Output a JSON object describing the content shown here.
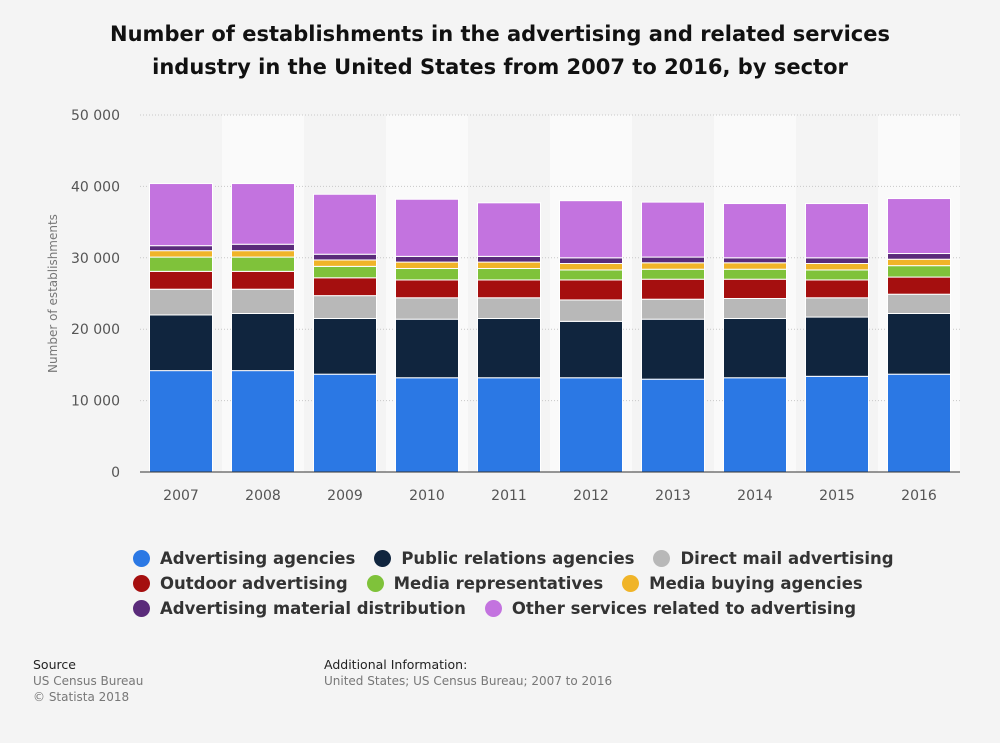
{
  "title": "Number of establishments in the advertising and related services industry in the United States from 2007 to 2016, by sector",
  "legend_items": [
    {
      "label": "Advertising agencies",
      "color": "#2b78e4"
    },
    {
      "label": "Public relations agencies",
      "color": "#10253e"
    },
    {
      "label": "Direct mail advertising",
      "color": "#b8b8b8"
    },
    {
      "label": "Outdoor advertising",
      "color": "#a50f0f"
    },
    {
      "label": "Media representatives",
      "color": "#7fc23a"
    },
    {
      "label": "Media buying agencies",
      "color": "#f0b428"
    },
    {
      "label": "Advertising material distribution",
      "color": "#5a2b7a"
    },
    {
      "label": "Other services related to advertising",
      "color": "#c373df"
    }
  ],
  "chart_data": {
    "type": "bar",
    "stacked": true,
    "title": "Number of establishments in the advertising and related services industry in the United States from 2007 to 2016, by sector",
    "xlabel": "",
    "ylabel": "Number of establishments",
    "ylim": [
      0,
      50000
    ],
    "yticks": [
      0,
      10000,
      20000,
      30000,
      40000,
      50000
    ],
    "ytick_labels": [
      "0",
      "10 000",
      "20 000",
      "30 000",
      "40 000",
      "50 000"
    ],
    "grid": true,
    "categories": [
      "2007",
      "2008",
      "2009",
      "2010",
      "2011",
      "2012",
      "2013",
      "2014",
      "2015",
      "2016"
    ],
    "series": [
      {
        "name": "Advertising agencies",
        "color": "#2b78e4",
        "values": [
          14200,
          14200,
          13700,
          13200,
          13200,
          13200,
          13000,
          13200,
          13400,
          13700
        ]
      },
      {
        "name": "Public relations agencies",
        "color": "#10253e",
        "values": [
          7800,
          8000,
          7800,
          8200,
          8300,
          7900,
          8400,
          8300,
          8300,
          8500
        ]
      },
      {
        "name": "Direct mail advertising",
        "color": "#b8b8b8",
        "values": [
          3600,
          3400,
          3200,
          3000,
          2900,
          3000,
          2800,
          2800,
          2700,
          2700
        ]
      },
      {
        "name": "Outdoor advertising",
        "color": "#a50f0f",
        "values": [
          2500,
          2500,
          2500,
          2500,
          2500,
          2800,
          2800,
          2700,
          2500,
          2400
        ]
      },
      {
        "name": "Media representatives",
        "color": "#7fc23a",
        "values": [
          2000,
          2000,
          1600,
          1600,
          1600,
          1400,
          1400,
          1400,
          1400,
          1600
        ]
      },
      {
        "name": "Media buying agencies",
        "color": "#f0b428",
        "values": [
          900,
          900,
          900,
          900,
          900,
          900,
          900,
          900,
          900,
          900
        ]
      },
      {
        "name": "Advertising material distribution",
        "color": "#5a2b7a",
        "values": [
          700,
          900,
          800,
          800,
          800,
          800,
          800,
          700,
          800,
          800
        ]
      },
      {
        "name": "Other services related to advertising",
        "color": "#c373df",
        "values": [
          8700,
          8500,
          8400,
          8000,
          7500,
          8000,
          7700,
          7600,
          7600,
          7700
        ]
      }
    ]
  },
  "footer": {
    "source_label": "Source",
    "source_lines": [
      "US Census Bureau",
      "© Statista 2018"
    ],
    "additional_label": "Additional Information:",
    "additional_text": "United States; US Census Bureau; 2007 to 2016"
  }
}
